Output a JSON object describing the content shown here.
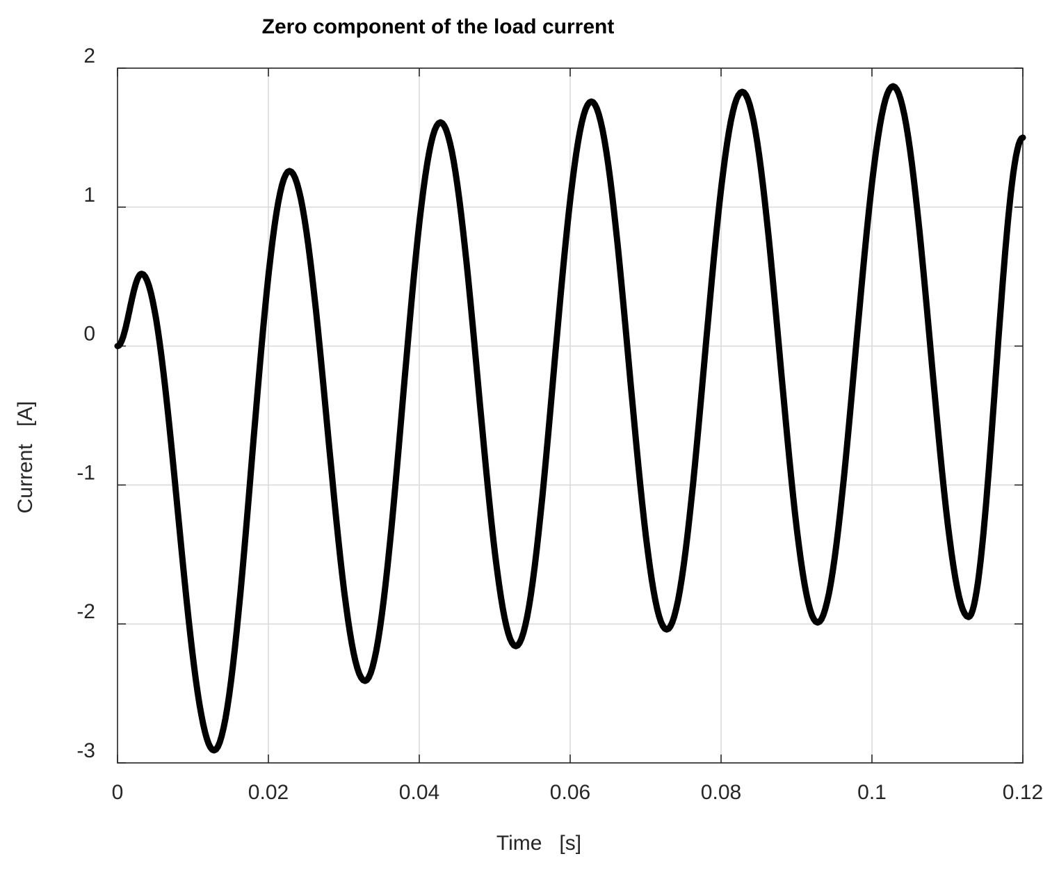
{
  "chart_data": {
    "type": "line",
    "title": "Zero component of the load current",
    "xlabel": "Time   [s]",
    "ylabel": "Current   [A]",
    "xlim": [
      0,
      0.12
    ],
    "ylim": [
      -3,
      2
    ],
    "xticks": [
      0,
      0.02,
      0.04,
      0.06,
      0.08,
      0.1,
      0.12
    ],
    "xtick_labels": [
      "0",
      "0.02",
      "0.04",
      "0.06",
      "0.08",
      "0.1",
      "0.12"
    ],
    "yticks": [
      -3,
      -2,
      -1,
      0,
      1,
      2
    ],
    "ytick_labels": [
      "-3",
      "-2",
      "-1",
      "0",
      "1",
      "2"
    ],
    "grid": true,
    "legend": "none",
    "series": [
      {
        "color": "#000000",
        "x": [
          0,
          0.0032,
          0.0128,
          0.0228,
          0.0328,
          0.0428,
          0.0528,
          0.0628,
          0.0728,
          0.0828,
          0.0928,
          0.1028,
          0.1128,
          0.12
        ],
        "y": [
          0,
          0.52,
          -2.91,
          1.26,
          -2.41,
          1.61,
          -2.16,
          1.76,
          -2.04,
          1.83,
          -1.99,
          1.87,
          -1.95,
          1.5
        ]
      }
    ]
  }
}
